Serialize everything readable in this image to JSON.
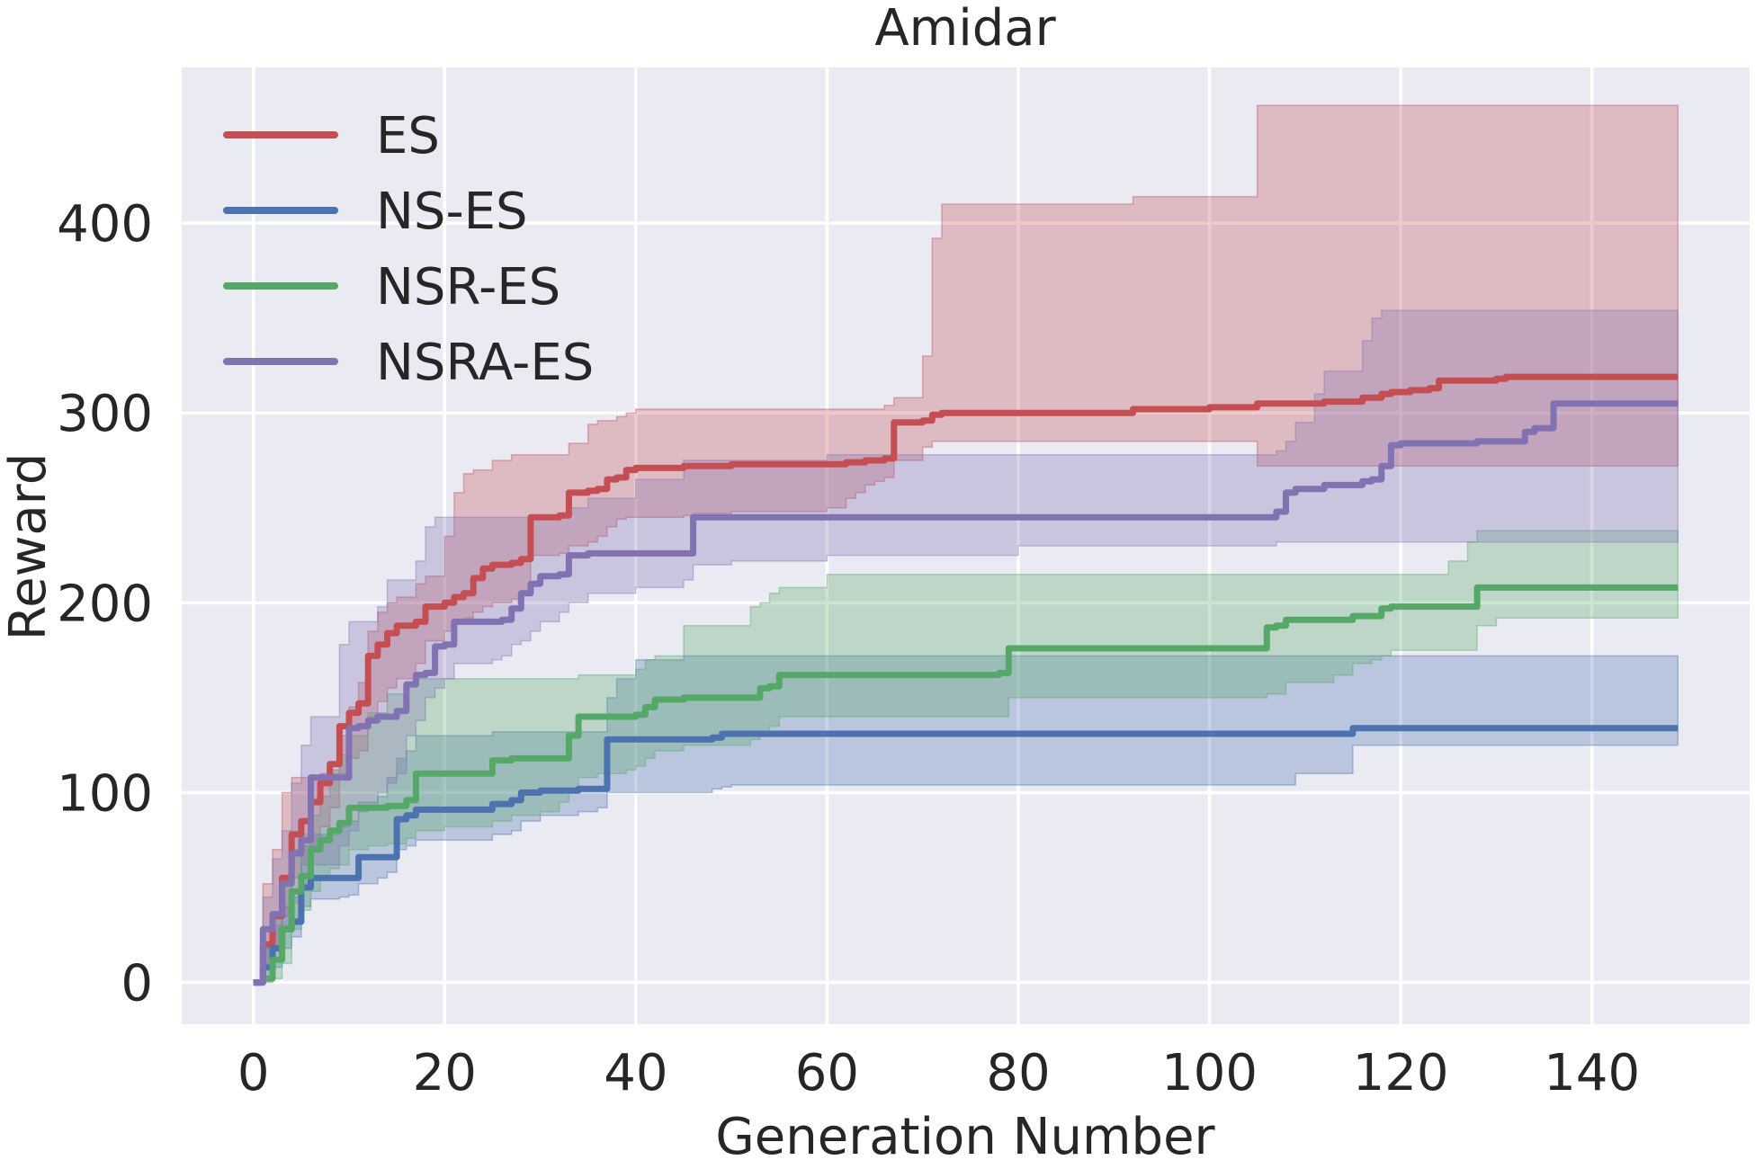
{
  "chart_data": {
    "type": "line",
    "title": "Amidar",
    "xlabel": "Generation Number",
    "ylabel": "Reward",
    "xlim": [
      -7.5,
      156.5
    ],
    "ylim": [
      -22,
      482
    ],
    "xticks": [
      0,
      20,
      40,
      60,
      80,
      100,
      120,
      140
    ],
    "yticks": [
      0,
      100,
      200,
      300,
      400
    ],
    "grid": true,
    "legend_position": "top-left",
    "series": [
      {
        "name": "ES",
        "color": "#c44e52",
        "x": [
          0,
          1,
          2,
          3,
          4,
          5,
          6,
          7,
          8,
          9,
          10,
          11,
          12,
          13,
          14,
          15,
          17,
          18,
          20,
          21,
          22,
          23,
          24,
          25,
          27,
          28,
          29,
          32,
          33,
          35,
          36,
          37,
          38,
          39,
          40,
          45,
          46,
          50,
          60,
          62,
          63,
          64,
          65,
          66,
          67,
          70,
          71,
          72,
          80,
          90,
          92,
          100,
          105,
          110,
          112,
          115,
          116,
          118,
          119,
          121,
          122,
          123,
          124,
          130,
          131,
          140,
          149
        ],
        "y": [
          0,
          20,
          35,
          55,
          78,
          85,
          95,
          105,
          115,
          135,
          142,
          147,
          172,
          178,
          184,
          188,
          190,
          198,
          200,
          203,
          205,
          213,
          218,
          220,
          221,
          223,
          245,
          246,
          258,
          259,
          260,
          265,
          266,
          270,
          271,
          272,
          272,
          273,
          273,
          274,
          274,
          275,
          275,
          276,
          295,
          296,
          299,
          300,
          300,
          300,
          302,
          303,
          305,
          305,
          306,
          306,
          308,
          310,
          311,
          312,
          312,
          313,
          317,
          318,
          319,
          319,
          319
        ],
        "upper": [
          0,
          52,
          70,
          100,
          108,
          108,
          108,
          110,
          112,
          130,
          145,
          158,
          185,
          195,
          200,
          203,
          210,
          214,
          235,
          258,
          268,
          270,
          270,
          275,
          278,
          278,
          278,
          278,
          284,
          294,
          296,
          296,
          298,
          300,
          302,
          302,
          302,
          302,
          302,
          302,
          302,
          302,
          302,
          304,
          308,
          330,
          392,
          410,
          410,
          410,
          414,
          414,
          462,
          462,
          462,
          462,
          462,
          462,
          462,
          462,
          462,
          462,
          462,
          462,
          462,
          462,
          462
        ],
        "lower": [
          0,
          8,
          18,
          35,
          55,
          62,
          72,
          82,
          92,
          110,
          118,
          122,
          140,
          148,
          155,
          160,
          168,
          180,
          185,
          190,
          192,
          195,
          198,
          200,
          202,
          205,
          225,
          226,
          230,
          232,
          235,
          240,
          244,
          245,
          245,
          246,
          247,
          248,
          250,
          255,
          258,
          262,
          264,
          266,
          275,
          282,
          285,
          285,
          285,
          285,
          285,
          285,
          272,
          272,
          272,
          272,
          272,
          272,
          272,
          272,
          272,
          272,
          272,
          272,
          272,
          272,
          272
        ]
      },
      {
        "name": "NS-ES",
        "color": "#4c72b0",
        "x": [
          0,
          1,
          2,
          3,
          4,
          5,
          6,
          8,
          9,
          10,
          11,
          13,
          14,
          15,
          16,
          17,
          20,
          24,
          25,
          27,
          28,
          30,
          34,
          36,
          37,
          38,
          40,
          45,
          46,
          48,
          49,
          50,
          60,
          80,
          100,
          108,
          109,
          115,
          120,
          140,
          149
        ],
        "y": [
          0,
          8,
          18,
          28,
          32,
          50,
          55,
          55,
          55,
          55,
          66,
          66,
          66,
          86,
          88,
          91,
          91,
          91,
          94,
          96,
          100,
          101,
          102,
          102,
          128,
          128,
          128,
          128,
          128,
          129,
          131,
          131,
          131,
          131,
          131,
          131,
          131,
          134,
          134,
          134,
          134
        ],
        "upper": [
          0,
          18,
          30,
          40,
          45,
          72,
          78,
          78,
          82,
          85,
          95,
          98,
          108,
          118,
          122,
          130,
          130,
          130,
          132,
          132,
          132,
          132,
          132,
          132,
          150,
          160,
          170,
          172,
          172,
          172,
          172,
          172,
          172,
          172,
          172,
          172,
          172,
          172,
          172,
          172,
          172
        ],
        "lower": [
          0,
          2,
          8,
          18,
          24,
          40,
          44,
          44,
          45,
          46,
          52,
          55,
          58,
          70,
          72,
          75,
          75,
          75,
          78,
          80,
          85,
          88,
          90,
          92,
          100,
          100,
          100,
          100,
          100,
          102,
          103,
          104,
          104,
          104,
          104,
          104,
          110,
          125,
          125,
          125,
          125
        ]
      },
      {
        "name": "NSR-ES",
        "color": "#55a868",
        "x": [
          0,
          1,
          2,
          3,
          4,
          5,
          6,
          7,
          8,
          9,
          10,
          12,
          14,
          16,
          17,
          20,
          24,
          25,
          27,
          30,
          32,
          33,
          34,
          36,
          39,
          40,
          41,
          42,
          45,
          52,
          53,
          54,
          55,
          60,
          70,
          78,
          79,
          85,
          90,
          100,
          105,
          106,
          107,
          108,
          113,
          115,
          117,
          118,
          119,
          125,
          127,
          128,
          130,
          140,
          149
        ],
        "y": [
          0,
          2,
          12,
          28,
          48,
          56,
          70,
          75,
          80,
          84,
          92,
          92,
          93,
          96,
          110,
          110,
          110,
          117,
          118,
          118,
          118,
          130,
          140,
          140,
          140,
          141,
          145,
          149,
          150,
          150,
          155,
          156,
          162,
          162,
          162,
          163,
          176,
          176,
          176,
          176,
          176,
          187,
          188,
          191,
          191,
          193,
          193,
          197,
          198,
          198,
          198,
          208,
          208,
          208,
          208
        ],
        "upper": [
          0,
          18,
          35,
          55,
          70,
          78,
          88,
          98,
          110,
          120,
          130,
          142,
          152,
          158,
          160,
          160,
          160,
          160,
          160,
          160,
          160,
          160,
          162,
          162,
          162,
          165,
          170,
          172,
          188,
          198,
          200,
          205,
          208,
          215,
          215,
          215,
          215,
          215,
          215,
          215,
          215,
          215,
          215,
          215,
          215,
          215,
          215,
          215,
          215,
          222,
          232,
          238,
          238,
          238,
          238
        ],
        "lower": [
          0,
          0,
          2,
          10,
          28,
          38,
          48,
          55,
          60,
          62,
          70,
          72,
          73,
          76,
          80,
          82,
          82,
          85,
          88,
          90,
          95,
          100,
          108,
          110,
          112,
          114,
          118,
          122,
          125,
          128,
          132,
          135,
          140,
          140,
          140,
          140,
          150,
          150,
          150,
          150,
          150,
          152,
          152,
          158,
          162,
          168,
          170,
          172,
          175,
          175,
          175,
          188,
          192,
          192,
          192
        ]
      },
      {
        "name": "NSRA-ES",
        "color": "#8172b2",
        "x": [
          0,
          1,
          2,
          3,
          4,
          5,
          6,
          9,
          10,
          11,
          12,
          13,
          14,
          15,
          16,
          17,
          18,
          19,
          20,
          21,
          25,
          26,
          27,
          28,
          29,
          30,
          32,
          33,
          35,
          40,
          45,
          46,
          50,
          60,
          80,
          100,
          106,
          107,
          108,
          109,
          111,
          112,
          116,
          117,
          118,
          119,
          120,
          125,
          126,
          128,
          129,
          132,
          133,
          134,
          135,
          136,
          140,
          149
        ],
        "y": [
          0,
          28,
          36,
          52,
          68,
          75,
          108,
          108,
          134,
          135,
          138,
          140,
          140,
          143,
          157,
          162,
          163,
          177,
          178,
          190,
          190,
          191,
          197,
          205,
          210,
          214,
          215,
          225,
          226,
          226,
          226,
          245,
          245,
          245,
          245,
          245,
          245,
          248,
          258,
          260,
          260,
          262,
          264,
          265,
          272,
          283,
          284,
          284,
          284,
          285,
          285,
          285,
          290,
          292,
          292,
          305,
          305,
          305
        ],
        "upper": [
          0,
          45,
          65,
          80,
          105,
          125,
          140,
          178,
          190,
          190,
          190,
          198,
          212,
          212,
          212,
          222,
          240,
          245,
          245,
          245,
          245,
          245,
          245,
          245,
          245,
          245,
          245,
          250,
          255,
          265,
          275,
          275,
          275,
          278,
          278,
          278,
          278,
          280,
          285,
          295,
          310,
          322,
          338,
          350,
          354,
          354,
          354,
          354,
          354,
          354,
          354,
          354,
          354,
          354,
          354,
          354,
          354,
          354
        ],
        "lower": [
          0,
          10,
          18,
          30,
          42,
          50,
          62,
          72,
          80,
          90,
          92,
          100,
          105,
          110,
          130,
          138,
          150,
          155,
          160,
          168,
          170,
          172,
          178,
          180,
          185,
          190,
          195,
          200,
          205,
          208,
          212,
          220,
          222,
          225,
          230,
          230,
          230,
          232,
          232,
          232,
          232,
          232,
          232,
          232,
          232,
          232,
          232,
          232,
          232,
          232,
          232,
          232,
          232,
          232,
          232,
          232,
          232,
          232
        ]
      }
    ]
  }
}
